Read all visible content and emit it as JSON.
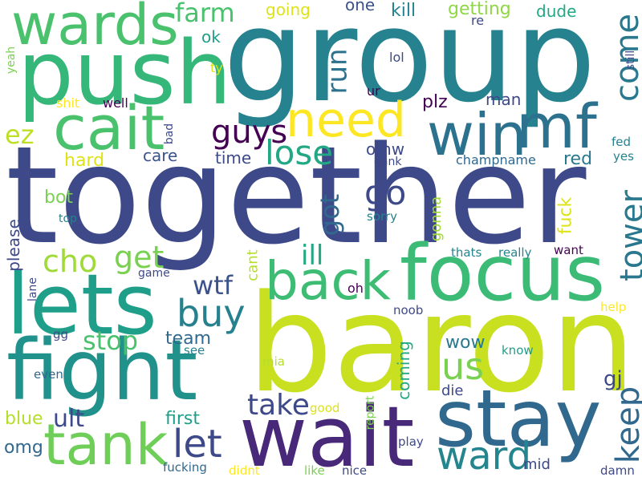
{
  "palette": {
    "dark_purple": "#440154",
    "indigo": "#3e4989",
    "blue": "#31688e",
    "teal": "#26828e",
    "green_teal": "#1f9e89",
    "green": "#35b779",
    "light_green": "#6ece58",
    "lime": "#b5de2b",
    "yellow": "#dde318",
    "bright_yellow": "#fde725"
  },
  "words": [
    {
      "text": "together",
      "color": "#3e4989"
    },
    {
      "text": "baron",
      "color": "#c8e020"
    },
    {
      "text": "group",
      "color": "#26828e"
    },
    {
      "text": "push",
      "color": "#35b779"
    },
    {
      "text": "lets",
      "color": "#1f9e89"
    },
    {
      "text": "fight",
      "color": "#21918c"
    },
    {
      "text": "wait",
      "color": "#482878"
    },
    {
      "text": "focus",
      "color": "#3bbb75"
    },
    {
      "text": "stay",
      "color": "#31688e"
    },
    {
      "text": "cait",
      "color": "#4ac16d"
    },
    {
      "text": "wards",
      "color": "#4ac16d"
    },
    {
      "text": "win",
      "color": "#2c728e"
    },
    {
      "text": "mf",
      "color": "#2c728e"
    },
    {
      "text": "need",
      "color": "#fde725"
    },
    {
      "text": "back",
      "color": "#3dbc74"
    },
    {
      "text": "tank",
      "color": "#6ece58"
    },
    {
      "text": "ward",
      "color": "#25858e"
    },
    {
      "text": "buy",
      "color": "#27808e"
    },
    {
      "text": "let",
      "color": "#3e4989"
    },
    {
      "text": "lose",
      "color": "#22a884"
    },
    {
      "text": "tower",
      "color": "#2a788e"
    },
    {
      "text": "come",
      "color": "#2a788e"
    },
    {
      "text": "guys",
      "color": "#440154"
    },
    {
      "text": "go",
      "color": "#3e4989"
    },
    {
      "text": "us",
      "color": "#7ad151"
    },
    {
      "text": "cho",
      "color": "#a0da39"
    },
    {
      "text": "get",
      "color": "#7ad151"
    },
    {
      "text": "keep",
      "color": "#31688e"
    },
    {
      "text": "take",
      "color": "#3e4989"
    },
    {
      "text": "ill",
      "color": "#22a884"
    },
    {
      "text": "wtf",
      "color": "#3b528b"
    },
    {
      "text": "run",
      "color": "#2c728e"
    },
    {
      "text": "got",
      "color": "#31688e"
    },
    {
      "text": "stop",
      "color": "#4ac16d"
    },
    {
      "text": "ez",
      "color": "#bddf26"
    },
    {
      "text": "farm",
      "color": "#4ac16d"
    },
    {
      "text": "ult",
      "color": "#3e4989"
    },
    {
      "text": "omg",
      "color": "#31688e"
    },
    {
      "text": "wow",
      "color": "#2a788e"
    },
    {
      "text": "gj",
      "color": "#3e4989"
    },
    {
      "text": "fuck",
      "color": "#dde318"
    },
    {
      "text": "coming",
      "color": "#22a884"
    },
    {
      "text": "first",
      "color": "#1f9e89"
    },
    {
      "text": "blue",
      "color": "#b5de2b"
    },
    {
      "text": "team",
      "color": "#31688e"
    },
    {
      "text": "plz",
      "color": "#440154"
    },
    {
      "text": "getting",
      "color": "#8fd744"
    },
    {
      "text": "going",
      "color": "#dde318"
    },
    {
      "text": "kill",
      "color": "#26828e"
    },
    {
      "text": "dude",
      "color": "#22a884"
    },
    {
      "text": "one",
      "color": "#3b528b"
    },
    {
      "text": "man",
      "color": "#3e4989"
    },
    {
      "text": "red",
      "color": "#2a788e"
    },
    {
      "text": "omw",
      "color": "#3e4989"
    },
    {
      "text": "time",
      "color": "#3e4989"
    },
    {
      "text": "care",
      "color": "#3b528b"
    },
    {
      "text": "hard",
      "color": "#dde318"
    },
    {
      "text": "bot",
      "color": "#7ad151"
    },
    {
      "text": "please",
      "color": "#3e4989"
    },
    {
      "text": "cant",
      "color": "#b5de2b"
    },
    {
      "text": "gonna",
      "color": "#a0da39"
    },
    {
      "text": "die",
      "color": "#3e4989"
    },
    {
      "text": "ok",
      "color": "#1f9e89"
    },
    {
      "text": "re",
      "color": "#3e4989"
    },
    {
      "text": "lol",
      "color": "#3e4989"
    },
    {
      "text": "ur",
      "color": "#440154"
    },
    {
      "text": "ty",
      "color": "#dde318"
    },
    {
      "text": "yeah",
      "color": "#7ad151"
    },
    {
      "text": "still",
      "color": "#3e4989"
    },
    {
      "text": "shit",
      "color": "#fde725"
    },
    {
      "text": "well",
      "color": "#440154"
    },
    {
      "text": "bad",
      "color": "#3e4989"
    },
    {
      "text": "fed",
      "color": "#26828e"
    },
    {
      "text": "yes",
      "color": "#26828e"
    },
    {
      "text": "gank",
      "color": "#3e4989"
    },
    {
      "text": "champname",
      "color": "#31688e"
    },
    {
      "text": "sorry",
      "color": "#26828e"
    },
    {
      "text": "top",
      "color": "#26828e"
    },
    {
      "text": "thats",
      "color": "#25858e"
    },
    {
      "text": "really",
      "color": "#25858e"
    },
    {
      "text": "want",
      "color": "#440154"
    },
    {
      "text": "game",
      "color": "#3e4989"
    },
    {
      "text": "lane",
      "color": "#3e4989"
    },
    {
      "text": "oh",
      "color": "#440154"
    },
    {
      "text": "noob",
      "color": "#3e4989"
    },
    {
      "text": "help",
      "color": "#fde725"
    },
    {
      "text": "gg",
      "color": "#3e4989"
    },
    {
      "text": "see",
      "color": "#26828e"
    },
    {
      "text": "mia",
      "color": "#b5de2b"
    },
    {
      "text": "know",
      "color": "#1f9e89"
    },
    {
      "text": "even",
      "color": "#31688e"
    },
    {
      "text": "report",
      "color": "#7ad151"
    },
    {
      "text": "good",
      "color": "#dde318"
    },
    {
      "text": "play",
      "color": "#3e4989"
    },
    {
      "text": "fucking",
      "color": "#31688e"
    },
    {
      "text": "didnt",
      "color": "#fde725"
    },
    {
      "text": "like",
      "color": "#7ad151"
    },
    {
      "text": "nice",
      "color": "#3e4989"
    },
    {
      "text": "mid",
      "color": "#3e4989"
    },
    {
      "text": "damn",
      "color": "#3e4989"
    }
  ]
}
